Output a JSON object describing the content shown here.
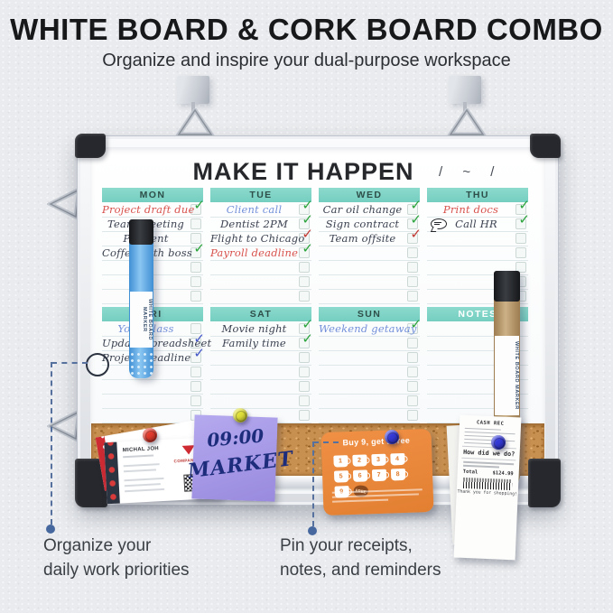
{
  "header": {
    "title": "WHITE BOARD & CORK BOARD COMBO",
    "subtitle": "Organize and inspire your dual-purpose workspace"
  },
  "planner": {
    "title": "MAKE IT HAPPEN",
    "date_display": "/ ~ /",
    "rows_per_section": 7,
    "columns": [
      {
        "day": "MON",
        "style": "teal",
        "checkboxes": true,
        "items": [
          {
            "text": "Project draft due",
            "ink": "red",
            "check": "green"
          },
          {
            "text": "Team meeting",
            "ink": "dark",
            "check": null
          },
          {
            "text": "Pay rent",
            "ink": "dark",
            "check": null
          },
          {
            "text": "Coffee with boss",
            "ink": "dark",
            "check": "green"
          }
        ]
      },
      {
        "day": "TUE",
        "style": "teal",
        "checkboxes": true,
        "items": [
          {
            "text": "Client call",
            "ink": "blue",
            "check": "green"
          },
          {
            "text": "Dentist 2PM",
            "ink": "dark",
            "check": "green"
          },
          {
            "text": "Flight to Chicago",
            "ink": "dark",
            "check": "red"
          },
          {
            "text": "Payroll deadline",
            "ink": "red",
            "check": "green"
          }
        ]
      },
      {
        "day": "WED",
        "style": "teal",
        "checkboxes": true,
        "items": [
          {
            "text": "Car oil change",
            "ink": "dark",
            "check": "green"
          },
          {
            "text": "Sign contract",
            "ink": "dark",
            "check": "green"
          },
          {
            "text": "Team offsite",
            "ink": "dark",
            "check": "red"
          }
        ]
      },
      {
        "day": "THU",
        "style": "teal",
        "checkboxes": true,
        "items": [
          {
            "text": "Print docs",
            "ink": "red",
            "check": "green"
          },
          {
            "text": "Call HR",
            "ink": "dark",
            "check": "green",
            "icon": "speech-bubble"
          }
        ]
      },
      {
        "day": "FRI",
        "style": "teal",
        "checkboxes": true,
        "items": [
          {
            "text": "Yoga class",
            "ink": "blue",
            "check": null
          },
          {
            "text": "Update spreadsheet",
            "ink": "dark",
            "check": "blue"
          },
          {
            "text": "Project deadline",
            "ink": "dark",
            "check": "blue"
          }
        ]
      },
      {
        "day": "SAT",
        "style": "teal",
        "checkboxes": true,
        "items": [
          {
            "text": "Movie night",
            "ink": "dark",
            "check": "green"
          },
          {
            "text": "Family time",
            "ink": "dark",
            "check": "green"
          }
        ]
      },
      {
        "day": "SUN",
        "style": "teal",
        "checkboxes": true,
        "items": [
          {
            "text": "Weekend getaway",
            "ink": "blue",
            "check": "green"
          }
        ]
      },
      {
        "day": "NOTES",
        "style": "notes",
        "checkboxes": false,
        "items": []
      }
    ],
    "check_glyph": "✓"
  },
  "markers": {
    "left_label": "WHITE BOARD MARKER",
    "right_label": "WHITE BOARD MARKER"
  },
  "cork_items": {
    "business_card": {
      "name": "MICHAL JOH",
      "logo": "COMPANY LOGO"
    },
    "sticky_note": {
      "line1": "09:00",
      "line2": "MARKET"
    },
    "loyalty_card": {
      "title": "Buy 9, get 1 free",
      "cups": [
        "1",
        "2",
        "3",
        "4",
        "5",
        "6",
        "7",
        "8",
        "9"
      ],
      "free_label": "FREE"
    },
    "receipt": {
      "header": "CASH REC",
      "question": "How did we do?",
      "total_label": "Total",
      "total_value": "$124.99",
      "footer": "Thank you for shopping!"
    }
  },
  "callouts": {
    "left": {
      "line1": "Organize your",
      "line2": "daily work priorities"
    },
    "right": {
      "line1": "Pin your receipts,",
      "line2": "notes, and reminders"
    }
  },
  "colors": {
    "teal_header": "#7ed3c4",
    "ink_red": "#d8514c",
    "ink_blue": "#7390da",
    "ink_dark": "#3b4250",
    "check_green": "#2aa33b",
    "check_red": "#c23934",
    "check_blue": "#4355c6",
    "cork": "#c78f50",
    "sticky_note": "#a89ae6",
    "loyalty_orange": "#e8883c",
    "callout_blue": "#47689f"
  }
}
